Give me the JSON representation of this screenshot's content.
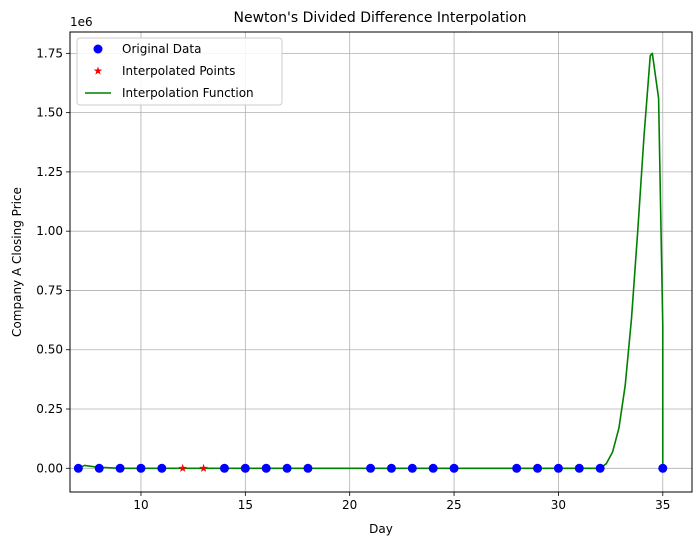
{
  "chart_data": {
    "type": "line",
    "title": "Newton's Divided Difference Interpolation",
    "xlabel": "Day",
    "ylabel": "Company A Closing Price",
    "y_offset_label": "1e6",
    "xlim": [
      6.6,
      36.4
    ],
    "ylim": [
      -100000,
      1840000
    ],
    "x_ticks": [
      10,
      15,
      20,
      25,
      30,
      35
    ],
    "y_ticks": [
      0,
      0.25,
      0.5,
      0.75,
      1.0,
      1.25,
      1.5,
      1.75
    ],
    "y_tick_labels": [
      "0.00",
      "0.25",
      "0.50",
      "0.75",
      "1.00",
      "1.25",
      "1.50",
      "1.75"
    ],
    "grid": true,
    "legend_position": "upper-left",
    "series": [
      {
        "name": "Original Data",
        "kind": "markers",
        "marker": "circle",
        "color": "#0000ff",
        "x": [
          7,
          8,
          9,
          10,
          11,
          14,
          15,
          16,
          17,
          18,
          21,
          22,
          23,
          24,
          25,
          28,
          29,
          30,
          31,
          32,
          35
        ],
        "y": [
          0,
          0,
          0,
          0,
          0,
          0,
          0,
          0,
          0,
          0,
          0,
          0,
          0,
          0,
          0,
          0,
          0,
          0,
          0,
          0,
          0
        ]
      },
      {
        "name": "Interpolated Points",
        "kind": "markers",
        "marker": "star",
        "color": "#ff0000",
        "x": [
          12,
          13
        ],
        "y": [
          0,
          0
        ]
      },
      {
        "name": "Interpolation Function",
        "kind": "line",
        "color": "#008000",
        "x": [
          7,
          7.3,
          7.8,
          8.5,
          9,
          10,
          11,
          12,
          14,
          16,
          18,
          20,
          22,
          24,
          26,
          28,
          30,
          31,
          31.5,
          32,
          32.3,
          32.6,
          32.9,
          33.2,
          33.5,
          33.8,
          34.1,
          34.4,
          34.5,
          34.8,
          35,
          35.0
        ],
        "y": [
          0,
          12000,
          6000,
          2000,
          0,
          0,
          0,
          0,
          0,
          0,
          0,
          0,
          0,
          0,
          0,
          0,
          0,
          0,
          0,
          0,
          20000,
          70000,
          170000,
          350000,
          630000,
          1000000,
          1400000,
          1740000,
          1750000,
          1560000,
          600000,
          0
        ]
      }
    ]
  }
}
